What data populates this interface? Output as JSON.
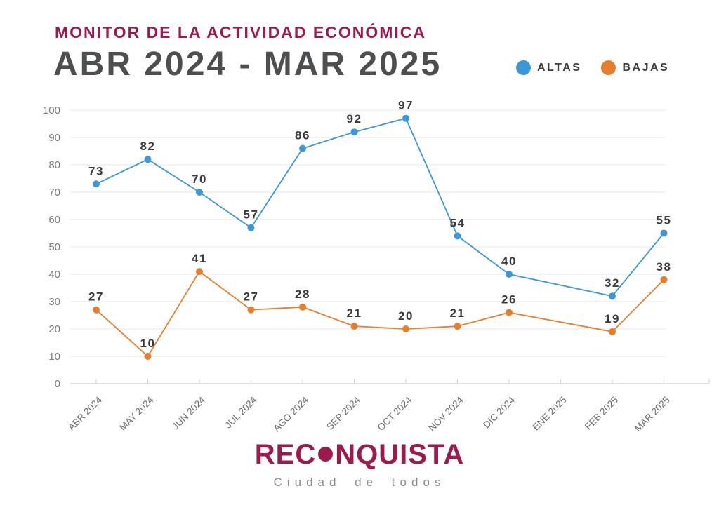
{
  "header": {
    "title": "MONITOR DE LA ACTIVIDAD ECONÓMICA",
    "subtitle": "ABR 2024 - MAR 2025"
  },
  "legend": [
    {
      "label": "ALTAS",
      "color": "#3B97D8"
    },
    {
      "label": "BAJAS",
      "color": "#E67E2B"
    }
  ],
  "chart_data": {
    "type": "line",
    "title": "MONITOR DE LA ACTIVIDAD ECONÓMICA",
    "subtitle": "ABR 2024 - MAR 2025",
    "categories": [
      "ABR 2024",
      "MAY 2024",
      "JUN 2024",
      "JUL 2024",
      "AGO 2024",
      "SEP 2024",
      "OCT 2024",
      "NOV 2024",
      "DIC 2024",
      "ENE 2025",
      "FEB 2025",
      "MAR 2025"
    ],
    "series": [
      {
        "name": "ALTAS",
        "color": "#3B97D8",
        "values": [
          73,
          82,
          70,
          57,
          86,
          92,
          97,
          54,
          40,
          null,
          32,
          55
        ]
      },
      {
        "name": "BAJAS",
        "color": "#E67E2B",
        "values": [
          27,
          10,
          41,
          27,
          28,
          21,
          20,
          21,
          26,
          null,
          19,
          38
        ]
      }
    ],
    "ylim": [
      0,
      100
    ],
    "yticks": [
      0,
      10,
      20,
      30,
      40,
      50,
      60,
      70,
      80,
      90,
      100
    ],
    "xlabel": "",
    "ylabel": "",
    "grid": true,
    "legend_position": "top-right",
    "colors": {
      "grid_line": "#E7E7E7",
      "axis_line": "#D9D9D9",
      "tick_mark": "#CFCFCF",
      "y_tick_label": "#7A7A7A",
      "x_tick_label": "#6B6B6B",
      "value_label": "#3B3B3B"
    }
  },
  "footer": {
    "logo_pre": "REC",
    "logo_post": "NQUISTA",
    "tagline": "Ciudad de todos"
  },
  "colors": {
    "brand_magenta": "#9B1B4E",
    "heading_gray": "#4D4E50",
    "altas_blue": "#3B97D8",
    "bajas_orange": "#E67E2B"
  }
}
